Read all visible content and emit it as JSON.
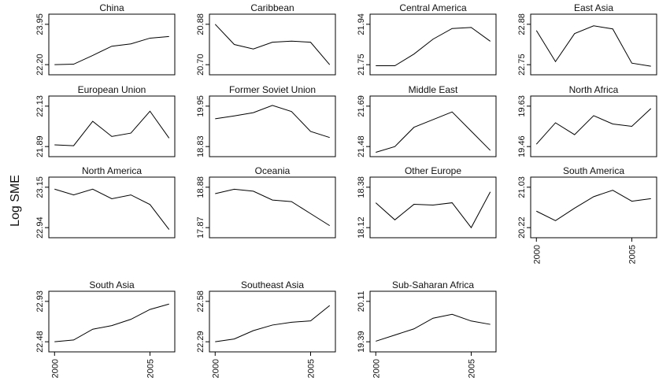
{
  "y_label": "Log SME",
  "chart_data": [
    {
      "type": "line",
      "title": "China",
      "x": [
        2000,
        2001,
        2002,
        2003,
        2004,
        2005,
        2006
      ],
      "values": [
        22.2,
        22.22,
        22.6,
        23.0,
        23.1,
        23.35,
        23.42
      ],
      "color": "#000000",
      "xlim": [
        1999.7,
        2006.3
      ],
      "ylim": [
        21.76,
        24.39
      ],
      "yticks": [
        {
          "value": 22.2,
          "label": "22.20"
        },
        23.95
      ]
    },
    {
      "type": "line",
      "title": "Caribbean",
      "x": [
        2000,
        2001,
        2002,
        2003,
        2004,
        2005,
        2006
      ],
      "values": [
        20.88,
        20.79,
        20.77,
        20.8,
        20.805,
        20.8,
        20.7
      ],
      "color": "#000000",
      "xlim": [
        1999.7,
        2006.3
      ],
      "ylim": [
        20.655,
        20.925
      ],
      "yticks": [
        {
          "value": 20.7,
          "label": "20.70"
        },
        20.88
      ]
    },
    {
      "type": "line",
      "title": "Central America",
      "x": [
        2000,
        2001,
        2002,
        2003,
        2004,
        2005,
        2006
      ],
      "values": [
        21.745,
        21.745,
        21.8,
        21.87,
        21.92,
        21.925,
        21.86
      ],
      "color": "#000000",
      "xlim": [
        1999.7,
        2006.3
      ],
      "ylim": [
        21.7025,
        21.9875
      ],
      "yticks": [
        21.75,
        21.94
      ]
    },
    {
      "type": "line",
      "title": "East Asia",
      "x": [
        2000,
        2001,
        2002,
        2003,
        2004,
        2005,
        2006
      ],
      "values": [
        22.86,
        22.76,
        22.85,
        22.875,
        22.865,
        22.755,
        22.745
      ],
      "color": "#000000",
      "xlim": [
        1999.7,
        2006.3
      ],
      "ylim": [
        22.7175,
        22.9125
      ],
      "yticks": [
        22.75,
        22.88
      ]
    },
    {
      "type": "line",
      "title": "European Union",
      "x": [
        2000,
        2001,
        2002,
        2003,
        2004,
        2005,
        2006
      ],
      "values": [
        21.9,
        21.895,
        22.04,
        21.95,
        21.97,
        22.1,
        21.94
      ],
      "color": "#000000",
      "xlim": [
        1999.7,
        2006.3
      ],
      "ylim": [
        21.83,
        22.19
      ],
      "yticks": [
        21.89,
        22.13
      ]
    },
    {
      "type": "line",
      "title": "Former Soviet Union",
      "x": [
        2000,
        2001,
        2002,
        2003,
        2004,
        2005,
        2006
      ],
      "values": [
        19.6,
        19.68,
        19.77,
        19.97,
        19.8,
        19.25,
        19.08
      ],
      "color": "#000000",
      "xlim": [
        1999.7,
        2006.3
      ],
      "ylim": [
        18.55,
        20.23
      ],
      "yticks": [
        18.83,
        19.95
      ]
    },
    {
      "type": "line",
      "title": "Middle East",
      "x": [
        2000,
        2001,
        2002,
        2003,
        2004,
        2005,
        2006
      ],
      "values": [
        21.45,
        21.48,
        21.58,
        21.62,
        21.66,
        21.56,
        21.46
      ],
      "color": "#000000",
      "xlim": [
        1999.7,
        2006.3
      ],
      "ylim": [
        21.4275,
        21.7425
      ],
      "yticks": [
        21.48,
        21.69
      ]
    },
    {
      "type": "line",
      "title": "North Africa",
      "x": [
        2000,
        2001,
        2002,
        2003,
        2004,
        2005,
        2006
      ],
      "values": [
        19.47,
        19.56,
        19.51,
        19.59,
        19.555,
        19.545,
        19.62
      ],
      "color": "#000000",
      "xlim": [
        1999.7,
        2006.3
      ],
      "ylim": [
        19.4175,
        19.6725
      ],
      "yticks": [
        19.46,
        19.63
      ]
    },
    {
      "type": "line",
      "title": "North America",
      "x": [
        2000,
        2001,
        2002,
        2003,
        2004,
        2005,
        2006
      ],
      "values": [
        23.14,
        23.11,
        23.14,
        23.09,
        23.11,
        23.06,
        22.93
      ],
      "color": "#000000",
      "xlim": [
        1999.7,
        2006.3
      ],
      "ylim": [
        22.8875,
        23.2025
      ],
      "yticks": [
        22.94,
        23.15
      ]
    },
    {
      "type": "line",
      "title": "Oceania",
      "x": [
        2000,
        2001,
        2002,
        2003,
        2004,
        2005,
        2006
      ],
      "values": [
        18.72,
        18.83,
        18.78,
        18.56,
        18.52,
        18.22,
        17.92
      ],
      "color": "#000000",
      "xlim": [
        1999.7,
        2006.3
      ],
      "ylim": [
        17.6175,
        19.1325
      ],
      "yticks": [
        17.87,
        18.88
      ]
    },
    {
      "type": "line",
      "title": "Other Europe",
      "x": [
        2000,
        2001,
        2002,
        2003,
        2004,
        2005,
        2006
      ],
      "values": [
        18.28,
        18.17,
        18.27,
        18.265,
        18.28,
        18.12,
        18.35
      ],
      "color": "#000000",
      "xlim": [
        1999.7,
        2006.3
      ],
      "ylim": [
        18.055,
        18.445
      ],
      "yticks": [
        18.12,
        18.38
      ]
    },
    {
      "type": "line",
      "title": "South America",
      "x": [
        2000,
        2001,
        2002,
        2003,
        2004,
        2005,
        2006
      ],
      "values": [
        20.55,
        20.36,
        20.61,
        20.84,
        20.97,
        20.75,
        20.8
      ],
      "color": "#000000",
      "xlim": [
        1999.7,
        2006.3
      ],
      "ylim": [
        20.0175,
        21.2325
      ],
      "yticks": [
        20.22,
        21.03
      ],
      "xticks": [
        2000,
        2005
      ]
    },
    {
      "type": "line",
      "title": "South Asia",
      "x": [
        2000,
        2001,
        2002,
        2003,
        2004,
        2005,
        2006
      ],
      "values": [
        22.48,
        22.5,
        22.62,
        22.66,
        22.73,
        22.84,
        22.9
      ],
      "color": "#000000",
      "xlim": [
        1999.7,
        2006.3
      ],
      "ylim": [
        22.3675,
        23.0425
      ],
      "yticks": [
        22.48,
        22.93
      ],
      "xticks": [
        2000,
        2005
      ]
    },
    {
      "type": "line",
      "title": "Southeast Asia",
      "x": [
        2000,
        2001,
        2002,
        2003,
        2004,
        2005,
        2006
      ],
      "values": [
        22.29,
        22.31,
        22.37,
        22.41,
        22.43,
        22.44,
        22.55
      ],
      "color": "#000000",
      "xlim": [
        1999.7,
        2006.3
      ],
      "ylim": [
        22.2175,
        22.6525
      ],
      "yticks": [
        22.29,
        22.58
      ],
      "xticks": [
        2000,
        2005
      ]
    },
    {
      "type": "line",
      "title": "Sub-Saharan Africa",
      "x": [
        2000,
        2001,
        2002,
        2003,
        2004,
        2005,
        2006
      ],
      "values": [
        19.4,
        19.51,
        19.62,
        19.81,
        19.88,
        19.76,
        19.7
      ],
      "color": "#000000",
      "xlim": [
        1999.7,
        2006.3
      ],
      "ylim": [
        19.21,
        20.29
      ],
      "yticks": [
        19.39,
        20.11
      ],
      "xticks": [
        2000,
        2005
      ]
    }
  ]
}
